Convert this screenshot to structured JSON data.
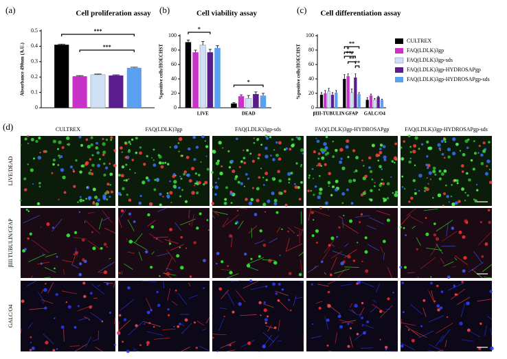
{
  "legend": {
    "names": [
      "CULTREX",
      "FAQ(LDLK)3gp",
      "FAQ(LDLK)3gp-sds",
      "FAQ(LDLK)3gp-HYDROSAPgp",
      "FAQ(LDLK)3gp-HYDROSAPgp-sds"
    ],
    "colors": [
      "#000000",
      "#c832c8",
      "#cfe0f4",
      "#5a1e8c",
      "#5aa0f0"
    ]
  },
  "chart_data": [
    {
      "type": "bar",
      "panel": "(a)",
      "title": "Cell proliferation assay",
      "y_label": "Absorbance 490nm (A.U.)",
      "categories": [
        null
      ],
      "ylim": [
        0,
        0.5
      ],
      "yticks": [
        0,
        0.1,
        0.2,
        0.3,
        0.4,
        0.5
      ],
      "series": [
        {
          "values": [
            0.41
          ],
          "errors": [
            0.004
          ]
        },
        {
          "values": [
            0.205
          ],
          "errors": [
            0.004
          ]
        },
        {
          "values": [
            0.215
          ],
          "errors": [
            0.004
          ]
        },
        {
          "values": [
            0.21
          ],
          "errors": [
            0.004
          ]
        },
        {
          "values": [
            0.26
          ],
          "errors": [
            0.004
          ]
        }
      ],
      "annotations": [
        "***",
        "***"
      ]
    },
    {
      "type": "bar",
      "panel": "(b)",
      "title": "Cell viability assay",
      "y_label": "%positive cells/HOECHST",
      "categories": [
        "LIVE",
        "DEAD"
      ],
      "ylim": [
        0,
        100
      ],
      "yticks": [
        0,
        20,
        40,
        60,
        80,
        100
      ],
      "series": [
        {
          "values": [
            91,
            6
          ],
          "errors": [
            3,
            1
          ]
        },
        {
          "values": [
            77,
            16
          ],
          "errors": [
            3,
            2
          ]
        },
        {
          "values": [
            87,
            13
          ],
          "errors": [
            5,
            4
          ]
        },
        {
          "values": [
            77,
            19
          ],
          "errors": [
            4,
            3
          ]
        },
        {
          "values": [
            83,
            17
          ],
          "errors": [
            3,
            3
          ]
        }
      ],
      "annotations": [
        "*",
        "*"
      ]
    },
    {
      "type": "bar",
      "panel": "(c)",
      "title": "Cell differentiation assay",
      "y_label": "%positive cells/HOECHST",
      "categories": [
        "βIII-TUBULIN",
        "GFAP",
        "GALC/O4"
      ],
      "ylim": [
        0,
        100
      ],
      "yticks": [
        0,
        20,
        40,
        60,
        80,
        100
      ],
      "series": [
        {
          "values": [
            18,
            40,
            11
          ],
          "errors": [
            3,
            6,
            3
          ]
        },
        {
          "values": [
            20,
            44,
            17
          ],
          "errors": [
            4,
            3,
            2
          ]
        },
        {
          "values": [
            23,
            21,
            11
          ],
          "errors": [
            4,
            5,
            2
          ]
        },
        {
          "values": [
            18,
            42,
            15
          ],
          "errors": [
            3,
            5,
            1
          ]
        },
        {
          "values": [
            21,
            19,
            11
          ],
          "errors": [
            3,
            2,
            1
          ]
        }
      ],
      "annotations": [
        "**",
        "*",
        "***",
        "**",
        "**"
      ]
    }
  ],
  "images": {
    "panel": "(d)",
    "columns": [
      "CULTREX",
      "FAQ(LDLK)3gp",
      "FAQ(LDLK)3gp-sds",
      "FAQ(LDLK)3gp-HYDROSAPgp",
      "FAQ(LDLK)3gp-HYDROSAPgp-sds"
    ],
    "rows": [
      "LIVE/DEAD",
      "βIII TUBULIN/GFAP",
      "GALC/O4"
    ]
  }
}
